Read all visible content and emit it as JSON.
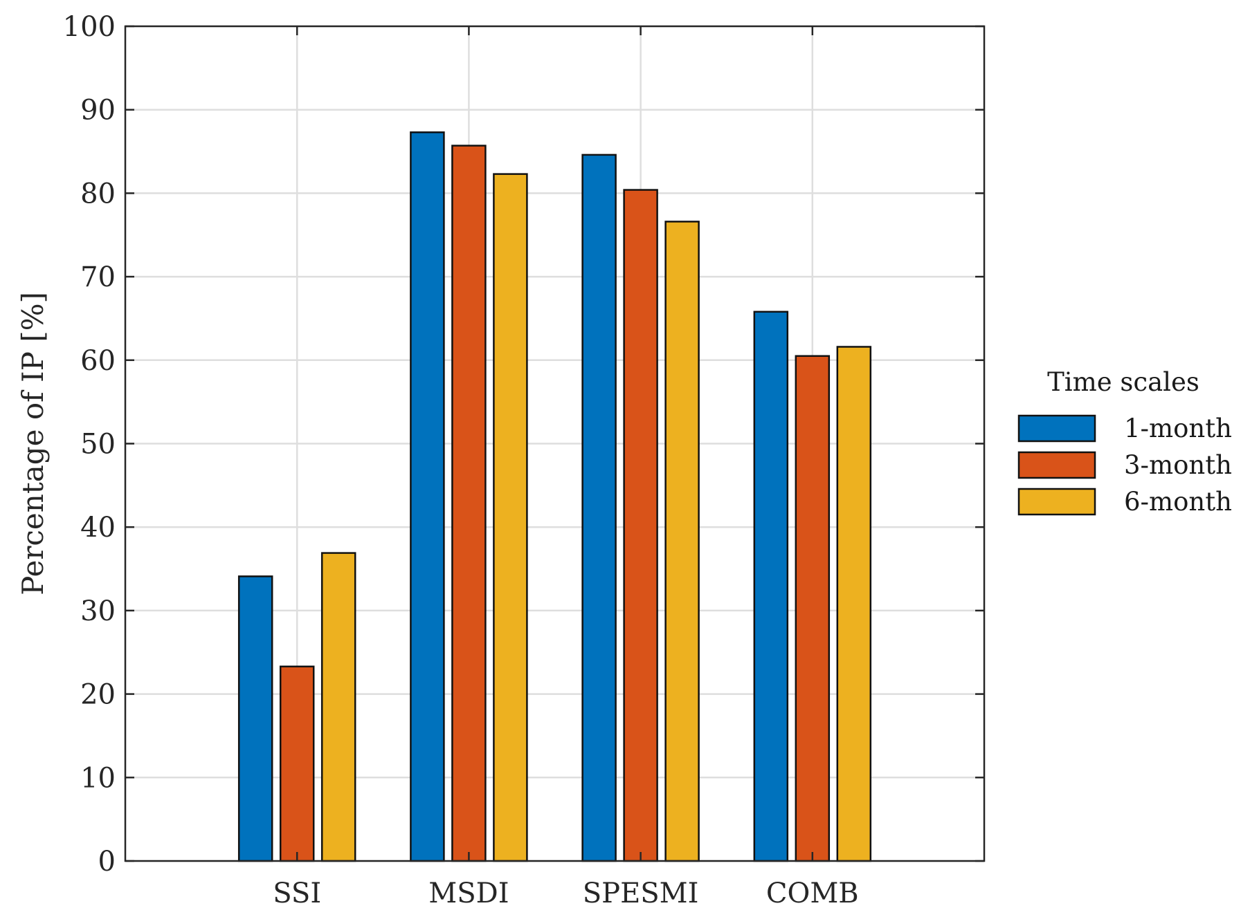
{
  "chart_data": {
    "type": "bar",
    "title": "",
    "xlabel": "",
    "ylabel": "Percentage of IP [%]",
    "categories": [
      "SSI",
      "MSDI",
      "SPESMI",
      "COMB"
    ],
    "series": [
      {
        "name": "1-month",
        "color": "#0072BD",
        "values": [
          34.1,
          87.3,
          84.6,
          65.8
        ]
      },
      {
        "name": "3-month",
        "color": "#D95319",
        "values": [
          23.3,
          85.7,
          80.4,
          60.5
        ]
      },
      {
        "name": "6-month",
        "color": "#EDB120",
        "values": [
          36.9,
          82.3,
          76.6,
          61.6
        ]
      }
    ],
    "ylim": [
      0,
      100
    ],
    "yticks": [
      0,
      10,
      20,
      30,
      40,
      50,
      60,
      70,
      80,
      90,
      100
    ],
    "grid": true,
    "legend": {
      "title": "Time scales",
      "placement": "right"
    }
  }
}
